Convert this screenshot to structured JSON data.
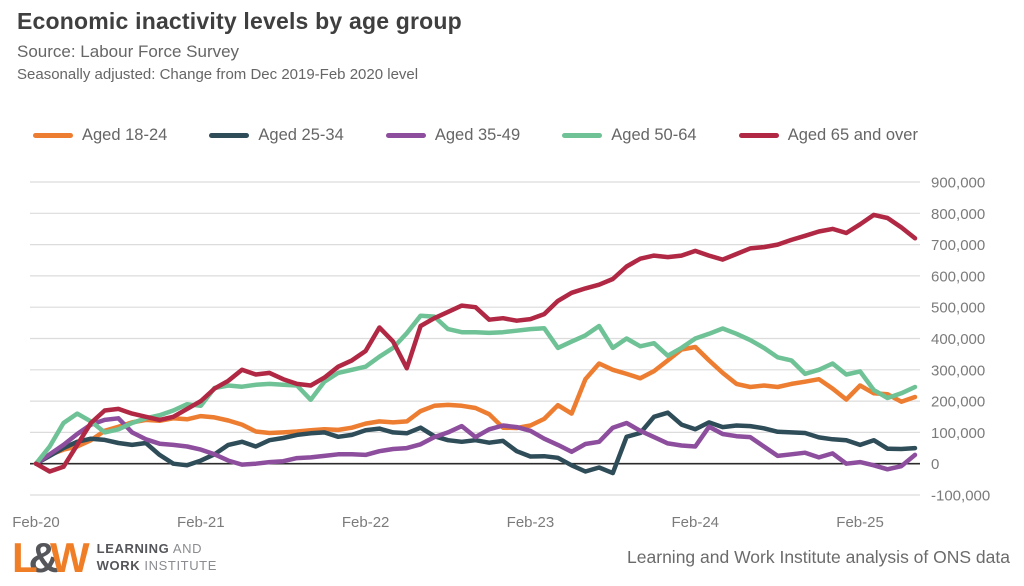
{
  "header": {
    "title": "Economic inactivity levels by age group",
    "source": "Source: Labour Force Survey",
    "subtitle": "Seasonally adjusted: Change from Dec 2019-Feb 2020 level"
  },
  "footer": {
    "logo": {
      "l": "L",
      "amp": "&",
      "w": "W",
      "line1_bold": "LEARNING",
      "line1_rest": " AND",
      "line2_bold": "WORK",
      "line2_rest": " INSTITUTE"
    },
    "credit": "Learning and Work Institute analysis of ONS data"
  },
  "chart_data": {
    "type": "line",
    "title": "Economic inactivity levels by age group",
    "xlabel": "",
    "ylabel": "",
    "ylim": [
      -100000,
      900000
    ],
    "grid": "horizontal",
    "legend_position": "top",
    "x": [
      "Feb-20",
      "Mar-20",
      "Apr-20",
      "May-20",
      "Jun-20",
      "Jul-20",
      "Aug-20",
      "Sep-20",
      "Oct-20",
      "Nov-20",
      "Dec-20",
      "Jan-21",
      "Feb-21",
      "Mar-21",
      "Apr-21",
      "May-21",
      "Jun-21",
      "Jul-21",
      "Aug-21",
      "Sep-21",
      "Oct-21",
      "Nov-21",
      "Dec-21",
      "Jan-22",
      "Feb-22",
      "Mar-22",
      "Apr-22",
      "May-22",
      "Jun-22",
      "Jul-22",
      "Aug-22",
      "Sep-22",
      "Oct-22",
      "Nov-22",
      "Dec-22",
      "Jan-23",
      "Feb-23",
      "Mar-23",
      "Apr-23",
      "May-23",
      "Jun-23",
      "Jul-23",
      "Aug-23",
      "Sep-23",
      "Oct-23",
      "Nov-23",
      "Dec-23",
      "Jan-24",
      "Feb-24",
      "Mar-24",
      "Apr-24",
      "May-24",
      "Jun-24",
      "Jul-24",
      "Aug-24",
      "Sep-24",
      "Oct-24",
      "Nov-24",
      "Dec-24",
      "Jan-25",
      "Feb-25",
      "Mar-25",
      "Apr-25",
      "May-25",
      "Jun-25"
    ],
    "xticks": [
      {
        "label": "Feb-20",
        "index": 0
      },
      {
        "label": "Feb-21",
        "index": 12
      },
      {
        "label": "Feb-22",
        "index": 24
      },
      {
        "label": "Feb-23",
        "index": 36
      },
      {
        "label": "Feb-24",
        "index": 48
      },
      {
        "label": "Feb-25",
        "index": 60
      }
    ],
    "yticks": [
      {
        "label": "900,000",
        "value": 900000
      },
      {
        "label": "800,000",
        "value": 800000
      },
      {
        "label": "700,000",
        "value": 700000
      },
      {
        "label": "600,000",
        "value": 600000
      },
      {
        "label": "500,000",
        "value": 500000
      },
      {
        "label": "400,000",
        "value": 400000
      },
      {
        "label": "300,000",
        "value": 300000
      },
      {
        "label": "200,000",
        "value": 200000
      },
      {
        "label": "100,000",
        "value": 100000
      },
      {
        "label": "0",
        "value": 0
      },
      {
        "label": "-100,000",
        "value": -100000
      }
    ],
    "series": [
      {
        "name": "Aged 18-24",
        "color": "#ED7D31",
        "values": [
          0,
          28000,
          45000,
          55000,
          75000,
          105000,
          118000,
          132000,
          140000,
          137000,
          145000,
          142000,
          152000,
          148000,
          138000,
          125000,
          103000,
          98000,
          100000,
          103000,
          107000,
          110000,
          108000,
          115000,
          128000,
          135000,
          132000,
          135000,
          168000,
          185000,
          188000,
          185000,
          178000,
          158000,
          115000,
          114000,
          122000,
          143000,
          187000,
          160000,
          270000,
          320000,
          300000,
          287000,
          273000,
          296000,
          330000,
          365000,
          373000,
          330000,
          290000,
          255000,
          245000,
          250000,
          245000,
          255000,
          262000,
          270000,
          240000,
          205000,
          250000,
          225000,
          222000,
          198000,
          213000
        ]
      },
      {
        "name": "Aged 25-34",
        "color": "#2E4D59",
        "values": [
          0,
          25000,
          50000,
          70000,
          80000,
          76000,
          66000,
          60000,
          66000,
          28000,
          0,
          -5000,
          10000,
          30000,
          60000,
          70000,
          55000,
          75000,
          82000,
          92000,
          97000,
          100000,
          86000,
          92000,
          107000,
          112000,
          100000,
          97000,
          115000,
          88000,
          75000,
          70000,
          75000,
          67000,
          73000,
          40000,
          23000,
          24000,
          19000,
          -5000,
          -25000,
          -12000,
          -30000,
          86000,
          98000,
          150000,
          163000,
          125000,
          110000,
          132000,
          117000,
          122000,
          120000,
          113000,
          102000,
          100000,
          98000,
          84000,
          78000,
          75000,
          60000,
          75000,
          48000,
          47000,
          50000
        ]
      },
      {
        "name": "Aged 35-49",
        "color": "#8E4E9E",
        "values": [
          0,
          30000,
          60000,
          95000,
          125000,
          140000,
          145000,
          100000,
          78000,
          64000,
          60000,
          55000,
          45000,
          30000,
          10000,
          -3000,
          0,
          5000,
          8000,
          18000,
          20000,
          25000,
          30000,
          30000,
          28000,
          40000,
          47000,
          50000,
          62000,
          85000,
          100000,
          120000,
          85000,
          110000,
          122000,
          117000,
          105000,
          80000,
          60000,
          38000,
          63000,
          70000,
          115000,
          130000,
          105000,
          85000,
          65000,
          58000,
          55000,
          118000,
          95000,
          88000,
          85000,
          55000,
          25000,
          30000,
          35000,
          20000,
          33000,
          0,
          5000,
          -5000,
          -18000,
          -8000,
          28000
        ]
      },
      {
        "name": "Aged 50-64",
        "color": "#6EC296",
        "values": [
          0,
          55000,
          130000,
          160000,
          135000,
          100000,
          110000,
          130000,
          145000,
          155000,
          170000,
          190000,
          185000,
          242000,
          250000,
          246000,
          252000,
          255000,
          252000,
          250000,
          204000,
          262000,
          290000,
          300000,
          310000,
          342000,
          370000,
          417000,
          473000,
          470000,
          430000,
          420000,
          420000,
          418000,
          420000,
          425000,
          430000,
          433000,
          370000,
          390000,
          410000,
          440000,
          370000,
          400000,
          375000,
          385000,
          345000,
          370000,
          400000,
          415000,
          432000,
          415000,
          395000,
          370000,
          340000,
          330000,
          287000,
          300000,
          320000,
          285000,
          295000,
          235000,
          210000,
          225000,
          245000
        ]
      },
      {
        "name": "Aged 65 and over",
        "color": "#B02843",
        "values": [
          0,
          -25000,
          -10000,
          60000,
          130000,
          170000,
          175000,
          160000,
          150000,
          140000,
          150000,
          175000,
          200000,
          240000,
          265000,
          300000,
          285000,
          290000,
          270000,
          255000,
          250000,
          275000,
          310000,
          330000,
          360000,
          435000,
          390000,
          305000,
          440000,
          465000,
          485000,
          505000,
          500000,
          460000,
          465000,
          457000,
          462000,
          478000,
          520000,
          546000,
          560000,
          572000,
          590000,
          630000,
          655000,
          665000,
          660000,
          665000,
          680000,
          665000,
          652000,
          670000,
          688000,
          692000,
          700000,
          715000,
          728000,
          742000,
          750000,
          737000,
          765000,
          795000,
          785000,
          755000,
          720000
        ]
      }
    ]
  }
}
